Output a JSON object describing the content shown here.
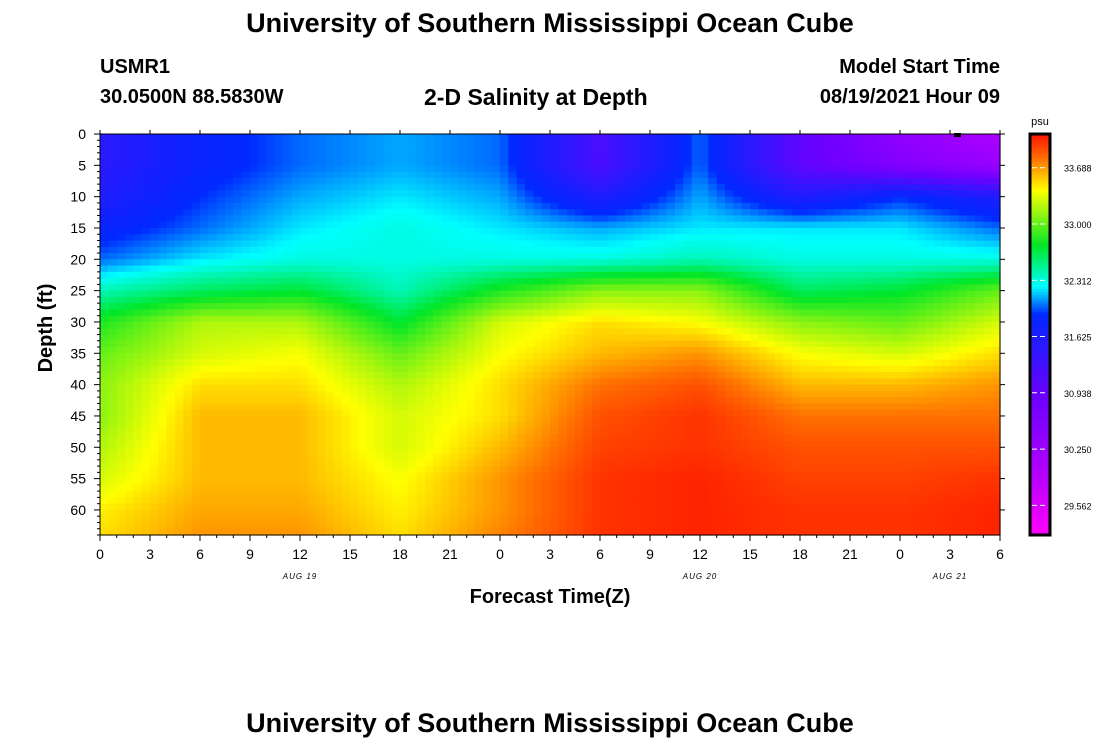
{
  "header": {
    "title": "University of Southern Mississippi Ocean Cube",
    "station_id": "USMR1",
    "station_coords": "30.0500N  88.5830W",
    "plot_title": "2-D Salinity at Depth",
    "model_label": "Model Start Time",
    "model_time": "08/19/2021 Hour 09"
  },
  "footer": {
    "title": "University of Southern Mississippi Ocean Cube"
  },
  "chart_data": {
    "type": "heatmap",
    "title": "2-D Salinity at Depth",
    "xlabel": "Forecast Time(Z)",
    "ylabel": "Depth (ft)",
    "x_ticks": [
      "0",
      "3",
      "6",
      "9",
      "12",
      "15",
      "18",
      "21",
      "0",
      "3",
      "6",
      "9",
      "12",
      "15",
      "18",
      "21",
      "0",
      "3",
      "6"
    ],
    "date_labels": [
      {
        "text": "AUG 19",
        "tick_index": 4
      },
      {
        "text": "AUG 20",
        "tick_index": 12
      },
      {
        "text": "AUG 21",
        "tick_index": 17
      }
    ],
    "y_ticks": [
      "0",
      "5",
      "10",
      "15",
      "20",
      "25",
      "30",
      "35",
      "40",
      "45",
      "50",
      "55",
      "60"
    ],
    "ylim": [
      0,
      64
    ],
    "x_range_hours": [
      0,
      54
    ],
    "colorbar": {
      "unit": "psu",
      "min": 29.2,
      "max": 34.1,
      "tick_labels": [
        "33.688",
        "33.000",
        "32.312",
        "31.625",
        "30.938",
        "30.250",
        "29.562"
      ],
      "tick_values": [
        33.688,
        33.0,
        32.312,
        31.625,
        30.938,
        30.25,
        29.562
      ]
    },
    "depth_levels_ft": [
      0,
      5,
      10,
      15,
      20,
      25,
      30,
      35,
      40,
      45,
      50,
      55,
      60,
      64
    ],
    "time_hours": [
      0,
      6,
      12,
      18,
      24,
      30,
      36,
      42,
      48,
      54
    ],
    "salinity_psu": [
      [
        31.5,
        31.8,
        32.0,
        32.1,
        32.0,
        31.2,
        32.0,
        31.0,
        30.4,
        30.0
      ],
      [
        31.5,
        31.8,
        32.0,
        32.1,
        32.0,
        31.2,
        32.0,
        31.0,
        30.6,
        30.3
      ],
      [
        31.6,
        31.9,
        32.1,
        32.2,
        32.1,
        31.6,
        32.1,
        31.6,
        31.9,
        31.6
      ],
      [
        31.8,
        32.0,
        32.2,
        32.3,
        32.2,
        32.1,
        32.2,
        32.2,
        32.2,
        32.0
      ],
      [
        32.0,
        32.2,
        32.3,
        32.3,
        32.3,
        32.3,
        32.4,
        32.3,
        32.3,
        32.3
      ],
      [
        32.4,
        32.6,
        32.7,
        32.4,
        32.8,
        33.1,
        33.1,
        32.6,
        32.7,
        33.0
      ],
      [
        32.8,
        33.2,
        33.2,
        32.7,
        33.3,
        33.5,
        33.4,
        33.1,
        33.0,
        33.3
      ],
      [
        33.0,
        33.3,
        33.4,
        33.0,
        33.4,
        33.6,
        33.7,
        33.4,
        33.3,
        33.5
      ],
      [
        33.1,
        33.5,
        33.5,
        33.2,
        33.5,
        33.8,
        33.9,
        33.6,
        33.6,
        33.7
      ],
      [
        33.1,
        33.6,
        33.6,
        33.3,
        33.5,
        33.9,
        34.0,
        33.8,
        33.8,
        33.8
      ],
      [
        33.2,
        33.6,
        33.6,
        33.3,
        33.6,
        33.95,
        34.0,
        33.9,
        33.9,
        33.9
      ],
      [
        33.3,
        33.6,
        33.6,
        33.4,
        33.7,
        34.0,
        34.05,
        33.95,
        33.95,
        34.0
      ],
      [
        33.45,
        33.65,
        33.65,
        33.45,
        33.7,
        34.0,
        34.05,
        34.0,
        34.0,
        34.05
      ],
      [
        33.5,
        33.7,
        33.7,
        33.5,
        33.75,
        34.0,
        34.05,
        34.0,
        34.0,
        34.05
      ]
    ]
  }
}
